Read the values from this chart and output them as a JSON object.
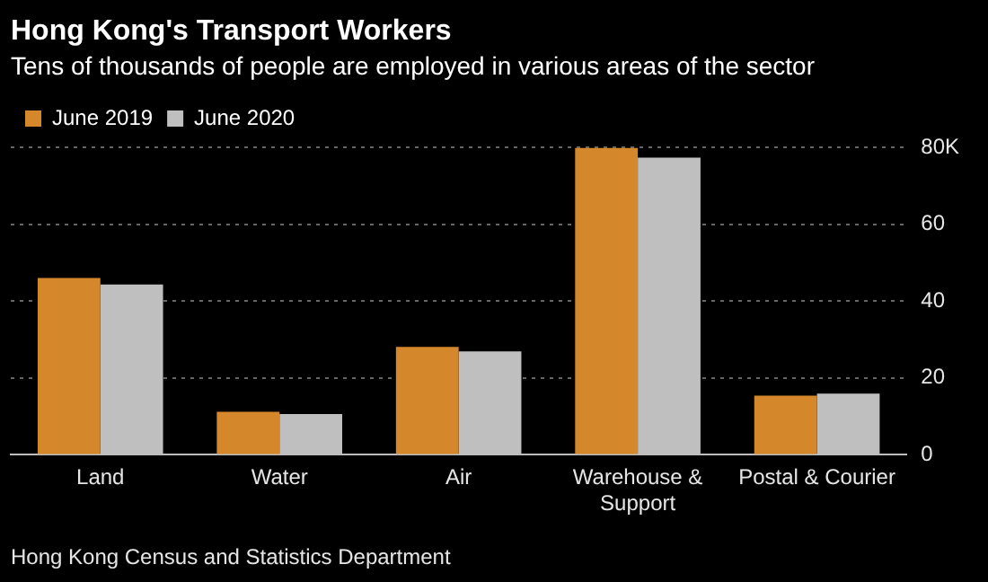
{
  "chart_data": {
    "type": "bar",
    "title": "Hong Kong's Transport Workers",
    "subtitle": "Tens of thousands of people are employed in various areas of the sector",
    "categories": [
      "Land",
      "Water",
      "Air",
      "Warehouse & Support",
      "Postal & Courier"
    ],
    "series": [
      {
        "name": "June 2019",
        "color": "#d4882b",
        "values": [
          46,
          11.2,
          28.1,
          79.8,
          15.4
        ]
      },
      {
        "name": "June 2020",
        "color": "#bfbfbf",
        "values": [
          44.3,
          10.6,
          26.9,
          77.3,
          15.9
        ]
      }
    ],
    "ylim": [
      0,
      80
    ],
    "yticks": [
      0,
      20,
      40,
      60,
      {
        "value": 80,
        "label": "80K"
      }
    ],
    "grid": "y",
    "legend": "top left",
    "annotations": [
      "Hong Kong Census and Statistics Department"
    ]
  }
}
